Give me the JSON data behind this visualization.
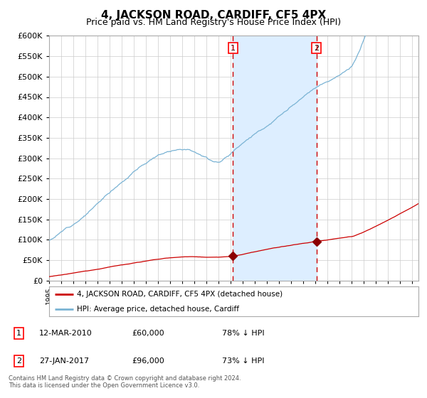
{
  "title": "4, JACKSON ROAD, CARDIFF, CF5 4PX",
  "subtitle": "Price paid vs. HM Land Registry's House Price Index (HPI)",
  "title_fontsize": 11,
  "subtitle_fontsize": 9,
  "legend_line1": "4, JACKSON ROAD, CARDIFF, CF5 4PX (detached house)",
  "legend_line2": "HPI: Average price, detached house, Cardiff",
  "transaction1_date": "12-MAR-2010",
  "transaction1_price": "£60,000",
  "transaction1_pct": "78% ↓ HPI",
  "transaction2_date": "27-JAN-2017",
  "transaction2_price": "£96,000",
  "transaction2_pct": "73% ↓ HPI",
  "footer": "Contains HM Land Registry data © Crown copyright and database right 2024.\nThis data is licensed under the Open Government Licence v3.0.",
  "hpi_line_color": "#7ab3d4",
  "price_color": "#cc0000",
  "marker_color": "#8b0000",
  "vline_color": "#cc0000",
  "shade_color": "#ddeeff",
  "grid_color": "#cccccc",
  "ylim": [
    0,
    600000
  ],
  "yticks": [
    0,
    50000,
    100000,
    150000,
    200000,
    250000,
    300000,
    350000,
    400000,
    450000,
    500000,
    550000,
    600000
  ],
  "transaction1_x": 2010.19,
  "transaction2_x": 2017.07,
  "transaction1_y": 60000,
  "transaction2_y": 96000,
  "xmin": 1995,
  "xmax": 2025.5,
  "background_color": "#ffffff",
  "plot_bg_color": "#ffffff"
}
